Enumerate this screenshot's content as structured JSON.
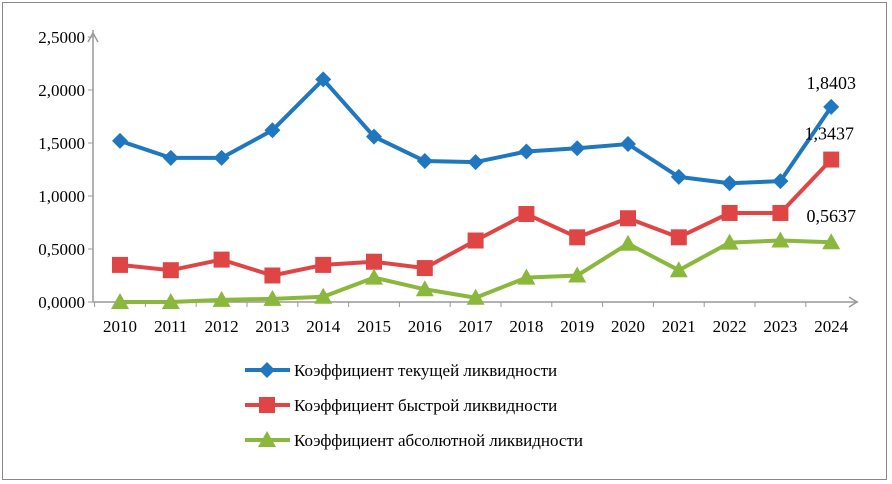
{
  "chart_data": {
    "type": "line",
    "title": "",
    "xlabel": "",
    "ylabel": "",
    "ylim": [
      0,
      2.5
    ],
    "yticks": [
      "0,0000",
      "0,5000",
      "1,0000",
      "1,5000",
      "2,0000",
      "2,5000"
    ],
    "categories": [
      "2010",
      "2011",
      "2012",
      "2013",
      "2014",
      "2015",
      "2016",
      "2017",
      "2018",
      "2019",
      "2020",
      "2021",
      "2022",
      "2023",
      "2024"
    ],
    "legend_position": "bottom",
    "series": [
      {
        "name": "Коэффициент текущей ликвидности",
        "color": "#1f77c0",
        "marker": "diamond",
        "values": [
          1.52,
          1.36,
          1.36,
          1.62,
          2.1,
          1.56,
          1.33,
          1.32,
          1.42,
          1.45,
          1.49,
          1.18,
          1.12,
          1.14,
          1.8403
        ],
        "end_label": "1,8403"
      },
      {
        "name": "Коэффициент быстрой ликвидности",
        "color": "#e04545",
        "marker": "square",
        "values": [
          0.35,
          0.3,
          0.4,
          0.25,
          0.35,
          0.38,
          0.32,
          0.58,
          0.83,
          0.61,
          0.79,
          0.61,
          0.84,
          0.84,
          1.3437
        ],
        "end_label": "1,3437"
      },
      {
        "name": "Коэффициент абсолютной ликвидности",
        "color": "#8ab83c",
        "marker": "triangle",
        "values": [
          0.0,
          0.0,
          0.02,
          0.03,
          0.05,
          0.23,
          0.12,
          0.04,
          0.23,
          0.25,
          0.55,
          0.3,
          0.56,
          0.58,
          0.5637
        ],
        "end_label": "0,5637"
      }
    ]
  }
}
